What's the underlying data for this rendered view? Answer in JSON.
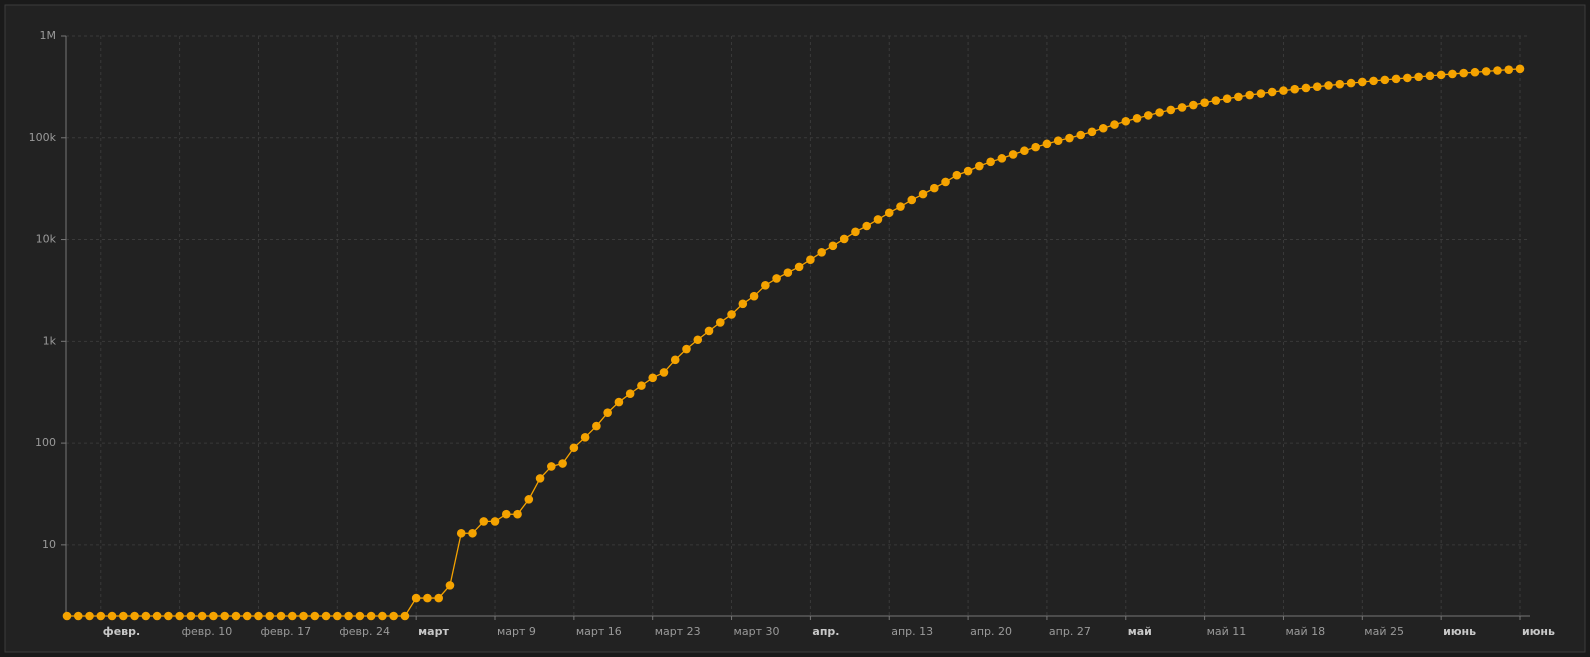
{
  "chart_data": {
    "type": "line",
    "log_scale": true,
    "grid": true,
    "color": "#f5a300",
    "categories": [
      null,
      null,
      null,
      "февр.",
      null,
      null,
      null,
      null,
      null,
      null,
      "февр. 10",
      null,
      null,
      null,
      null,
      null,
      null,
      "февр. 17",
      null,
      null,
      null,
      null,
      null,
      null,
      "февр. 24",
      null,
      null,
      null,
      null,
      null,
      null,
      "март",
      null,
      null,
      null,
      null,
      null,
      null,
      "март 9",
      null,
      null,
      null,
      null,
      null,
      null,
      "март 16",
      null,
      null,
      null,
      null,
      null,
      null,
      "март 23",
      null,
      null,
      null,
      null,
      null,
      null,
      "март 30",
      null,
      null,
      null,
      null,
      null,
      null,
      "апр.",
      null,
      null,
      null,
      null,
      null,
      null,
      "апр. 13",
      null,
      null,
      null,
      null,
      null,
      null,
      "апр. 20",
      null,
      null,
      null,
      null,
      null,
      null,
      "апр. 27",
      null,
      null,
      null,
      null,
      null,
      null,
      "май",
      null,
      null,
      null,
      null,
      null,
      null,
      "май 11",
      null,
      null,
      null,
      null,
      null,
      null,
      "май 18",
      null,
      null,
      null,
      null,
      null,
      null,
      "май 25",
      null,
      null,
      null,
      null,
      null,
      null,
      "июнь",
      null,
      null,
      null,
      null,
      null,
      null,
      "июнь"
    ],
    "values": [
      2,
      2,
      2,
      2,
      2,
      2,
      2,
      2,
      2,
      2,
      2,
      2,
      2,
      2,
      2,
      2,
      2,
      2,
      2,
      2,
      2,
      2,
      2,
      2,
      2,
      2,
      2,
      2,
      2,
      2,
      2,
      3,
      3,
      3,
      4,
      13,
      13,
      17,
      17,
      20,
      20,
      28,
      45,
      59,
      63,
      90,
      114,
      147,
      199,
      253,
      306,
      367,
      438,
      495,
      658,
      840,
      1036,
      1264,
      1534,
      1836,
      2337,
      2777,
      3548,
      4149,
      4731,
      5389,
      6343,
      7497,
      8672,
      10131,
      11917,
      13584,
      15770,
      18328,
      21102,
      24490,
      27938,
      32008,
      36793,
      42853,
      47121,
      52763,
      57999,
      62773,
      68622,
      74588,
      80949,
      87147,
      93558,
      99399,
      106498,
      114431,
      124054,
      134687,
      145268,
      155370,
      165929,
      177160,
      187859,
      198676,
      209688,
      221344,
      232243,
      242271,
      252245,
      262843,
      272043,
      281752,
      290678,
      299941,
      308705,
      317554,
      326448,
      335882,
      344481,
      353427,
      362342,
      370680,
      379051,
      387623,
      396575,
      405843,
      414878,
      423741,
      432277,
      440538,
      449256,
      458102,
      467073,
      476043
    ],
    "ylim": [
      2,
      1000000
    ],
    "yticks": [
      10,
      100,
      {
        "value": 1000,
        "label": "1k"
      },
      {
        "value": 10000,
        "label": "10k"
      },
      {
        "value": 100000,
        "label": "100k"
      },
      {
        "value": 1000000,
        "label": "1M"
      }
    ]
  }
}
